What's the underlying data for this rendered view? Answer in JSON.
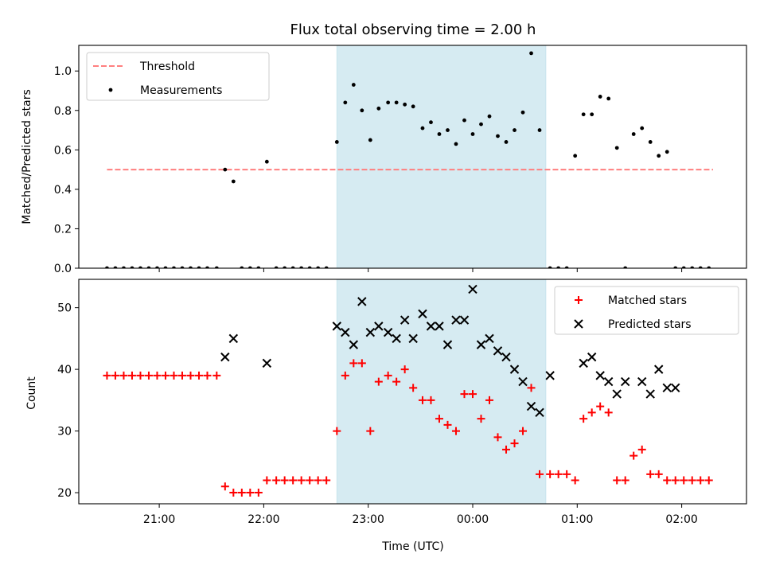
{
  "chart_data": [
    {
      "type": "scatter",
      "title": "Flux total observing time = 2.00 h",
      "xlabel": "",
      "ylabel": "Matched/Predicted stars",
      "xlim_hours": [
        20.23,
        26.62
      ],
      "ylim": [
        0,
        1.13
      ],
      "x_ticks": [
        {
          "h": 21,
          "label": "21:00"
        },
        {
          "h": 22,
          "label": "22:00"
        },
        {
          "h": 23,
          "label": "23:00"
        },
        {
          "h": 24,
          "label": "00:00"
        },
        {
          "h": 25,
          "label": "01:00"
        },
        {
          "h": 26,
          "label": "02:00"
        }
      ],
      "y_ticks": [
        0.0,
        0.2,
        0.4,
        0.6,
        0.8,
        1.0
      ],
      "y_tick_labels": [
        "0.0",
        "0.2",
        "0.4",
        "0.6",
        "0.8",
        "1.0"
      ],
      "shaded_span_hours": [
        22.7,
        24.7
      ],
      "shade_color": "#add8e6",
      "legend_position": "upper left",
      "series": [
        {
          "name": "Threshold",
          "kind": "dashed-line",
          "color": "#ff7f7f",
          "x_hours": [
            20.5,
            26.3
          ],
          "values": [
            0.5,
            0.5
          ]
        },
        {
          "name": "Measurements",
          "kind": "dots",
          "color": "#000000",
          "x_hours": [
            20.5,
            20.58,
            20.66,
            20.74,
            20.82,
            20.9,
            20.98,
            21.06,
            21.14,
            21.22,
            21.3,
            21.38,
            21.46,
            21.55,
            21.63,
            21.71,
            21.79,
            21.87,
            21.95,
            22.03,
            22.12,
            22.2,
            22.28,
            22.36,
            22.44,
            22.52,
            22.6,
            22.7,
            22.78,
            22.86,
            22.94,
            23.02,
            23.1,
            23.19,
            23.27,
            23.35,
            23.43,
            23.52,
            23.6,
            23.68,
            23.76,
            23.84,
            23.92,
            24.0,
            24.08,
            24.16,
            24.24,
            24.32,
            24.4,
            24.48,
            24.56,
            24.64,
            24.74,
            24.82,
            24.9,
            24.98,
            25.06,
            25.14,
            25.22,
            25.3,
            25.38,
            25.46,
            25.54,
            25.62,
            25.7,
            25.78,
            25.86,
            25.94,
            26.02,
            26.1,
            26.18,
            26.26
          ],
          "values": [
            0,
            0,
            0,
            0,
            0,
            0,
            0,
            0,
            0,
            0,
            0,
            0,
            0,
            0,
            0.5,
            0.44,
            0,
            0,
            0,
            0.54,
            0,
            0,
            0,
            0,
            0,
            0,
            0,
            0.64,
            0.84,
            0.93,
            0.8,
            0.65,
            0.81,
            0.84,
            0.84,
            0.83,
            0.82,
            0.71,
            0.74,
            0.68,
            0.7,
            0.63,
            0.75,
            0.68,
            0.73,
            0.77,
            0.67,
            0.64,
            0.7,
            0.79,
            1.09,
            0.7,
            0,
            0,
            0,
            0.57,
            0.78,
            0.78,
            0.87,
            0.86,
            0.61,
            0,
            0.68,
            0.71,
            0.64,
            0.57,
            0.59,
            0,
            0,
            0,
            0,
            0
          ]
        }
      ]
    },
    {
      "type": "scatter",
      "title": "",
      "xlabel": "Time (UTC)",
      "ylabel": "Count",
      "xlim_hours": [
        20.23,
        26.62
      ],
      "ylim": [
        18.2,
        54.6
      ],
      "x_ticks": [
        {
          "h": 21,
          "label": "21:00"
        },
        {
          "h": 22,
          "label": "22:00"
        },
        {
          "h": 23,
          "label": "23:00"
        },
        {
          "h": 24,
          "label": "00:00"
        },
        {
          "h": 25,
          "label": "01:00"
        },
        {
          "h": 26,
          "label": "02:00"
        }
      ],
      "y_ticks": [
        20,
        30,
        40,
        50
      ],
      "y_tick_labels": [
        "20",
        "30",
        "40",
        "50"
      ],
      "shaded_span_hours": [
        22.7,
        24.7
      ],
      "shade_color": "#add8e6",
      "legend_position": "upper right",
      "series": [
        {
          "name": "Matched stars",
          "kind": "plus",
          "color": "#ff0000",
          "x_hours": [
            20.5,
            20.58,
            20.66,
            20.74,
            20.82,
            20.9,
            20.98,
            21.06,
            21.14,
            21.22,
            21.3,
            21.38,
            21.46,
            21.55,
            21.63,
            21.71,
            21.79,
            21.87,
            21.95,
            22.03,
            22.12,
            22.2,
            22.28,
            22.36,
            22.44,
            22.52,
            22.6,
            22.7,
            22.78,
            22.86,
            22.94,
            23.02,
            23.1,
            23.19,
            23.27,
            23.35,
            23.43,
            23.52,
            23.6,
            23.68,
            23.76,
            23.84,
            23.92,
            24.0,
            24.08,
            24.16,
            24.24,
            24.32,
            24.4,
            24.48,
            24.56,
            24.64,
            24.74,
            24.82,
            24.9,
            24.98,
            25.06,
            25.14,
            25.22,
            25.3,
            25.38,
            25.46,
            25.54,
            25.62,
            25.7,
            25.78,
            25.86,
            25.94,
            26.02,
            26.1,
            26.18,
            26.26
          ],
          "values": [
            39,
            39,
            39,
            39,
            39,
            39,
            39,
            39,
            39,
            39,
            39,
            39,
            39,
            39,
            21,
            20,
            20,
            20,
            20,
            22,
            22,
            22,
            22,
            22,
            22,
            22,
            22,
            30,
            39,
            41,
            41,
            30,
            38,
            39,
            38,
            40,
            37,
            35,
            35,
            32,
            31,
            30,
            36,
            36,
            32,
            35,
            29,
            27,
            28,
            30,
            37,
            23,
            23,
            23,
            23,
            22,
            32,
            33,
            34,
            33,
            22,
            22,
            26,
            27,
            23,
            23,
            22,
            22,
            22,
            22,
            22,
            22
          ]
        },
        {
          "name": "Predicted stars",
          "kind": "x",
          "color": "#000000",
          "x_hours": [
            21.63,
            21.71,
            22.03,
            22.7,
            22.78,
            22.86,
            22.94,
            23.02,
            23.1,
            23.19,
            23.27,
            23.35,
            23.43,
            23.52,
            23.6,
            23.68,
            23.76,
            23.84,
            23.92,
            24.0,
            24.08,
            24.16,
            24.24,
            24.32,
            24.4,
            24.48,
            24.56,
            24.64,
            24.74,
            25.06,
            25.14,
            25.22,
            25.3,
            25.38,
            25.46,
            25.62,
            25.7,
            25.78,
            25.86,
            25.94
          ],
          "values": [
            42,
            45,
            41,
            47,
            46,
            44,
            51,
            46,
            47,
            46,
            45,
            48,
            45,
            49,
            47,
            47,
            44,
            48,
            48,
            53,
            44,
            45,
            43,
            42,
            40,
            38,
            34,
            33,
            39,
            41,
            42,
            39,
            38,
            36,
            38,
            38,
            36,
            40,
            37,
            37
          ]
        }
      ]
    }
  ]
}
